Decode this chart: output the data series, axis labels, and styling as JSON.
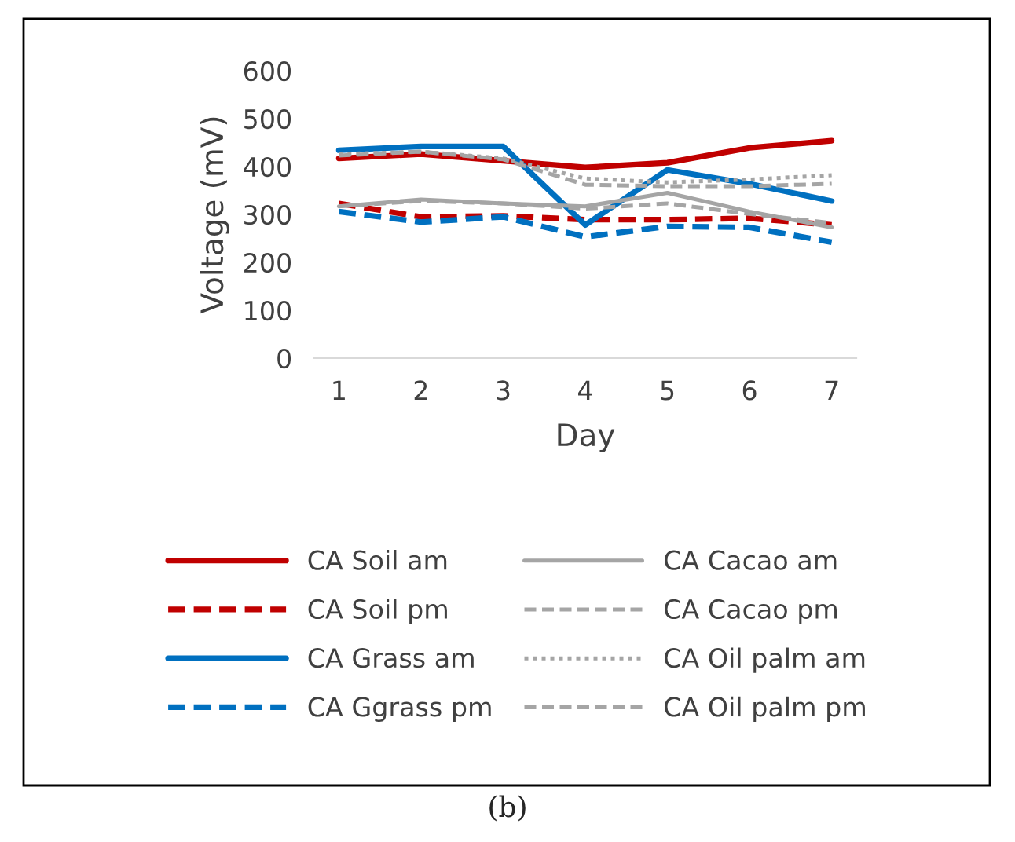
{
  "chart_data": {
    "type": "line",
    "xlabel": "Day",
    "ylabel": "Voltage (mV)",
    "categories": [
      "1",
      "2",
      "3",
      "4",
      "5",
      "6",
      "7"
    ],
    "ylim": [
      0,
      600
    ],
    "yticks": [
      0,
      100,
      200,
      300,
      400,
      500,
      600
    ],
    "grid": false,
    "legend": "bottom",
    "marker": "none",
    "series": [
      {
        "name": "CA Soil am",
        "color": "#c00000",
        "line_style": "solid",
        "values": [
          417,
          426,
          412,
          398,
          408,
          439,
          454
        ]
      },
      {
        "name": "CA Soil pm",
        "color": "#c00000",
        "line_style": "dashed",
        "values": [
          323,
          295,
          297,
          289,
          289,
          292,
          278
        ]
      },
      {
        "name": "CA Grass am",
        "color": "#0070c0",
        "line_style": "solid",
        "values": [
          434,
          442,
          442,
          278,
          393,
          364,
          328
        ]
      },
      {
        "name": "CA Ggrass pm",
        "color": "#0070c0",
        "line_style": "dashed",
        "values": [
          306,
          284,
          295,
          253,
          275,
          273,
          242
        ]
      },
      {
        "name": "CA Cacao am",
        "color": "#a5a5a5",
        "line_style": "solid",
        "values": [
          317,
          331,
          323,
          317,
          345,
          306,
          273
        ]
      },
      {
        "name": "CA Cacao pm",
        "color": "#a5a5a5",
        "line_style": "dashed",
        "values": [
          317,
          328,
          323,
          312,
          323,
          301,
          282
        ]
      },
      {
        "name": "CA Oil palm am",
        "color": "#a5a5a5",
        "line_style": "dotted",
        "values": [
          426,
          431,
          417,
          375,
          367,
          373,
          382
        ]
      },
      {
        "name": "CA Oil palm pm",
        "color": "#a5a5a5",
        "line_style": "dashed",
        "values": [
          423,
          431,
          415,
          362,
          359,
          359,
          364
        ]
      }
    ],
    "annotations": [
      "(b)"
    ]
  }
}
